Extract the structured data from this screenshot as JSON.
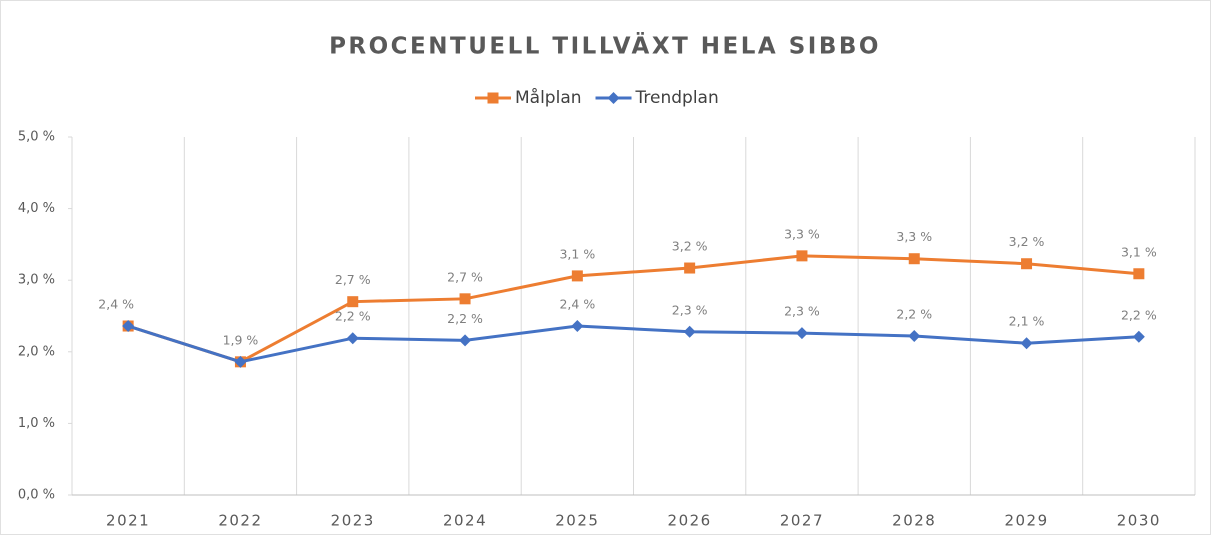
{
  "chart_data": {
    "type": "line",
    "title": "PROCENTUELL TILLVÄXT HELA SIBBO",
    "categories": [
      "2021",
      "2022",
      "2023",
      "2024",
      "2025",
      "2026",
      "2027",
      "2028",
      "2029",
      "2030"
    ],
    "series": [
      {
        "name": "Målplan",
        "color": "#ed7d31",
        "marker": "square",
        "values": [
          2.36,
          1.86,
          2.7,
          2.74,
          3.06,
          3.17,
          3.34,
          3.3,
          3.23,
          3.09
        ],
        "value_labels": [
          "2,4 %",
          "1,9 %",
          "2,7 %",
          "2,7 %",
          "3,1 %",
          "3,2 %",
          "3,3 %",
          "3,3 %",
          "3,2 %",
          "3,1 %"
        ]
      },
      {
        "name": "Trendplan",
        "color": "#4472c4",
        "marker": "diamond",
        "values": [
          2.36,
          1.86,
          2.19,
          2.16,
          2.36,
          2.28,
          2.26,
          2.22,
          2.12,
          2.21
        ],
        "value_labels": [
          null,
          null,
          "2,2 %",
          "2,2 %",
          "2,4 %",
          "2,3 %",
          "2,3 %",
          "2,2 %",
          "2,1 %",
          "2,2 %"
        ]
      }
    ],
    "ylim": [
      0,
      5
    ],
    "yticks": [
      {
        "value": 0,
        "label": "0,0 %"
      },
      {
        "value": 1,
        "label": "1,0 %"
      },
      {
        "value": 2,
        "label": "2,0 %"
      },
      {
        "value": 3,
        "label": "3,0 %"
      },
      {
        "value": 4,
        "label": "4,0 %"
      },
      {
        "value": 5,
        "label": "5,0 %"
      }
    ],
    "legend": "top",
    "grid": "vertical"
  }
}
